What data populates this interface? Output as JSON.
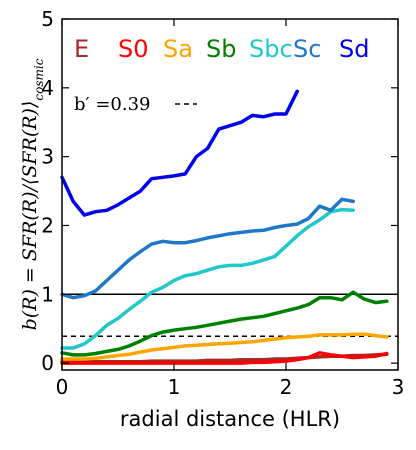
{
  "chart_data": {
    "type": "line",
    "xlabel": "radial distance (HLR)",
    "ylabel": "b(R) = SFR(R)/⟨SFR(R)⟩",
    "ylabel_subscript": "cosmic",
    "xlim": [
      0,
      3
    ],
    "ylim": [
      -0.1,
      5
    ],
    "xticks": [
      "0",
      "1",
      "2",
      "3"
    ],
    "yticks": [
      "0",
      "1",
      "2",
      "3",
      "4",
      "5"
    ],
    "annotation": {
      "text": "b′ =0.39",
      "line_y": 0.39,
      "line_x": [
        1.15,
        1.3
      ]
    },
    "reference_lines": [
      {
        "y": 1.0,
        "style": "solid"
      },
      {
        "y": 0.39,
        "style": "dashed"
      }
    ],
    "series": [
      {
        "name": "E",
        "color": "#a52a2a",
        "x": [
          0,
          0.1,
          0.2,
          0.3,
          0.4,
          0.5,
          0.6,
          0.7,
          0.8,
          0.9,
          1.0,
          1.1,
          1.2,
          1.3,
          1.4,
          1.5,
          1.6,
          1.7,
          1.8,
          1.9,
          2.0,
          2.1,
          2.2,
          2.3,
          2.4,
          2.5,
          2.6,
          2.7,
          2.8,
          2.9
        ],
        "y": [
          0.02,
          0.02,
          0.02,
          0.02,
          0.02,
          0.02,
          0.02,
          0.02,
          0.03,
          0.03,
          0.03,
          0.03,
          0.03,
          0.04,
          0.04,
          0.04,
          0.05,
          0.05,
          0.05,
          0.06,
          0.06,
          0.07,
          0.08,
          0.09,
          0.1,
          0.1,
          0.11,
          0.11,
          0.12,
          0.13
        ]
      },
      {
        "name": "S0",
        "color": "#ff0000",
        "x": [
          0,
          0.1,
          0.2,
          0.3,
          0.4,
          0.5,
          0.6,
          0.7,
          0.8,
          0.9,
          1.0,
          1.1,
          1.2,
          1.3,
          1.4,
          1.5,
          1.6,
          1.7,
          1.8,
          1.9,
          2.0,
          2.1,
          2.2,
          2.3,
          2.4,
          2.5,
          2.6,
          2.7,
          2.8,
          2.9
        ],
        "y": [
          0.0,
          0.0,
          0.0,
          0.0,
          0.0,
          0.0,
          0.0,
          0.0,
          0.0,
          0.0,
          0.0,
          0.0,
          0.0,
          0.0,
          0.0,
          0.0,
          0.0,
          0.01,
          0.01,
          0.02,
          0.03,
          0.05,
          0.08,
          0.15,
          0.12,
          0.1,
          0.08,
          0.09,
          0.1,
          0.14
        ]
      },
      {
        "name": "Sa",
        "color": "#ffa500",
        "x": [
          0,
          0.1,
          0.2,
          0.3,
          0.4,
          0.5,
          0.6,
          0.7,
          0.8,
          0.9,
          1.0,
          1.1,
          1.2,
          1.3,
          1.4,
          1.5,
          1.6,
          1.7,
          1.8,
          1.9,
          2.0,
          2.1,
          2.2,
          2.3,
          2.4,
          2.5,
          2.6,
          2.7,
          2.8,
          2.9
        ],
        "y": [
          0.06,
          0.06,
          0.06,
          0.07,
          0.09,
          0.11,
          0.13,
          0.16,
          0.19,
          0.21,
          0.23,
          0.25,
          0.26,
          0.27,
          0.28,
          0.29,
          0.3,
          0.31,
          0.33,
          0.35,
          0.37,
          0.38,
          0.39,
          0.41,
          0.41,
          0.41,
          0.42,
          0.42,
          0.4,
          0.38
        ]
      },
      {
        "name": "Sb",
        "color": "#008000",
        "x": [
          0,
          0.1,
          0.2,
          0.3,
          0.4,
          0.5,
          0.6,
          0.7,
          0.8,
          0.9,
          1.0,
          1.1,
          1.2,
          1.3,
          1.4,
          1.5,
          1.6,
          1.7,
          1.8,
          1.9,
          2.0,
          2.1,
          2.2,
          2.3,
          2.4,
          2.5,
          2.6,
          2.7,
          2.8,
          2.9
        ],
        "y": [
          0.15,
          0.12,
          0.12,
          0.14,
          0.17,
          0.2,
          0.25,
          0.32,
          0.4,
          0.45,
          0.48,
          0.5,
          0.52,
          0.55,
          0.58,
          0.61,
          0.64,
          0.66,
          0.68,
          0.72,
          0.76,
          0.8,
          0.85,
          0.95,
          0.95,
          0.92,
          1.03,
          0.93,
          0.88,
          0.9
        ]
      },
      {
        "name": "Sbc",
        "color": "#20c8c8",
        "x": [
          0,
          0.1,
          0.2,
          0.3,
          0.4,
          0.5,
          0.6,
          0.7,
          0.8,
          0.9,
          1.0,
          1.1,
          1.2,
          1.3,
          1.4,
          1.5,
          1.6,
          1.7,
          1.8,
          1.9,
          2.0,
          2.1,
          2.2,
          2.3,
          2.4,
          2.5,
          2.6
        ],
        "y": [
          0.22,
          0.22,
          0.28,
          0.4,
          0.55,
          0.65,
          0.78,
          0.9,
          1.03,
          1.1,
          1.2,
          1.27,
          1.3,
          1.35,
          1.4,
          1.42,
          1.42,
          1.45,
          1.5,
          1.55,
          1.7,
          1.85,
          1.98,
          2.08,
          2.2,
          2.23,
          2.22
        ]
      },
      {
        "name": "Sc",
        "color": "#1f77c8",
        "x": [
          0,
          0.1,
          0.2,
          0.3,
          0.4,
          0.5,
          0.6,
          0.7,
          0.8,
          0.9,
          1.0,
          1.1,
          1.2,
          1.3,
          1.4,
          1.5,
          1.6,
          1.7,
          1.8,
          1.9,
          2.0,
          2.1,
          2.2,
          2.3,
          2.4,
          2.5,
          2.6
        ],
        "y": [
          1.0,
          0.95,
          0.98,
          1.05,
          1.2,
          1.35,
          1.5,
          1.62,
          1.73,
          1.77,
          1.75,
          1.75,
          1.78,
          1.82,
          1.85,
          1.88,
          1.9,
          1.92,
          1.93,
          1.97,
          2.0,
          2.02,
          2.1,
          2.28,
          2.22,
          2.38,
          2.35
        ]
      },
      {
        "name": "Sd",
        "color": "#0000ee",
        "x": [
          0,
          0.1,
          0.2,
          0.3,
          0.4,
          0.5,
          0.6,
          0.7,
          0.8,
          0.9,
          1.0,
          1.1,
          1.2,
          1.3,
          1.4,
          1.5,
          1.6,
          1.7,
          1.8,
          1.9,
          2.0,
          2.1
        ],
        "y": [
          2.7,
          2.35,
          2.15,
          2.2,
          2.22,
          2.3,
          2.4,
          2.5,
          2.68,
          2.7,
          2.72,
          2.75,
          3.0,
          3.12,
          3.4,
          3.45,
          3.5,
          3.6,
          3.58,
          3.62,
          3.62,
          3.95
        ]
      }
    ]
  }
}
